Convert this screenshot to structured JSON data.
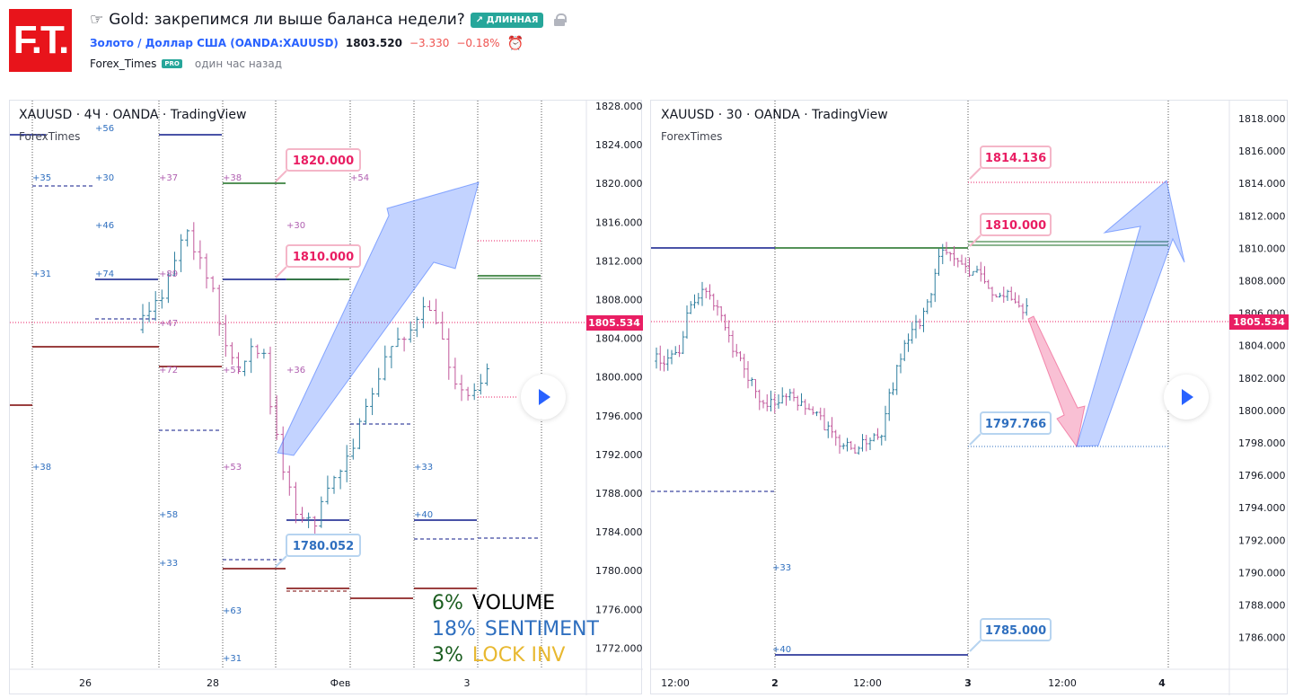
{
  "header": {
    "logo_text": "F.T.",
    "title_emoji": "☞",
    "title": "Gold: закрепимся ли выше баланса недели?",
    "badge": "↗ ДЛИННАЯ",
    "symbol": "Золото / Доллар США (OANDA:XAUUSD)",
    "price": "1803.520",
    "change": "−3.330",
    "change_pct": "−0.18%",
    "author": "Forex_Times",
    "pro": "PRO",
    "time": "один час назад"
  },
  "left_chart": {
    "label": "XAUUSD · 4Ч · OANDA · TradingView",
    "sub": "ForexTimes",
    "y_ticks": [
      "1828.000",
      "1824.000",
      "1820.000",
      "1816.000",
      "1812.000",
      "1808.000",
      "1804.000",
      "1800.000",
      "1796.000",
      "1792.000",
      "1788.000",
      "1784.000",
      "1780.000",
      "1776.000",
      "1772.000"
    ],
    "x_ticks": [
      "26",
      "28",
      "Фев",
      "3"
    ],
    "current_price": "1805.534",
    "callouts": [
      "1820.000",
      "1810.000",
      "1780.052"
    ],
    "volume_labels": [
      "+56",
      "+35",
      "+30",
      "+46",
      "+31",
      "+74",
      "+37",
      "+38",
      "+54",
      "+30",
      "+89",
      "+57",
      "+36",
      "+47",
      "+72",
      "+53",
      "+38",
      "+58",
      "+33",
      "+40",
      "+63",
      "+31",
      "+33"
    ],
    "legend": [
      {
        "pct": "6%",
        "name": "VOLUME",
        "pct_color": "#1b5e20",
        "name_color": "#000000"
      },
      {
        "pct": "18%",
        "name": "SENTIMENT",
        "pct_color": "#2f6fbf",
        "name_color": "#2f6fbf"
      },
      {
        "pct": "3%",
        "name": "LOCK INV",
        "pct_color": "#1b5e20",
        "name_color": "#e8b830"
      }
    ]
  },
  "right_chart": {
    "label": "XAUUSD · 30 · OANDA · TradingView",
    "sub": "ForexTimes",
    "y_ticks": [
      "1818.000",
      "1816.000",
      "1814.000",
      "1812.000",
      "1810.000",
      "1808.000",
      "1806.000",
      "1804.000",
      "1802.000",
      "1800.000",
      "1798.000",
      "1796.000",
      "1794.000",
      "1792.000",
      "1790.000",
      "1788.000",
      "1786.000"
    ],
    "x_ticks": [
      "12:00",
      "2",
      "12:00",
      "3",
      "12:00",
      "4"
    ],
    "current_price": "1805.534",
    "callouts": [
      "1814.136",
      "1810.000",
      "1797.766",
      "1785.000"
    ],
    "volume_labels": [
      "+33",
      "+40"
    ]
  },
  "colors": {
    "accent": "#2962ff",
    "up": "#26a69a",
    "down": "#ef5350",
    "candle_up": "#2f7f9f",
    "candle_down": "#c2589b",
    "price_tag": "#e91e63"
  }
}
